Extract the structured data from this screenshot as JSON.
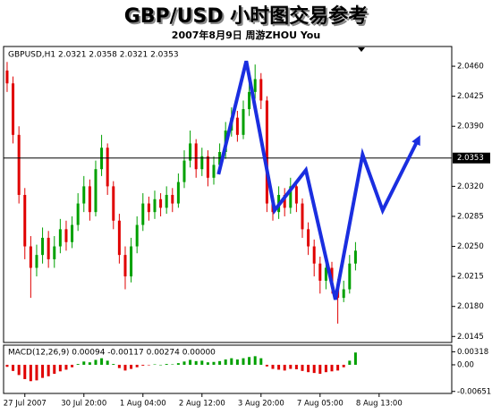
{
  "chart_data": {
    "type": "candlestick",
    "title": "GBP/USD 小时图交易参考",
    "subtitle": "2007年8月9日    周游ZHOU You",
    "info_text": "GBPUSD,H1  2.0321 2.0358 2.0321 2.0353",
    "xlim": [
      -0.6,
      75.3
    ],
    "ylim": [
      2.0138,
      2.0483
    ],
    "yticks": [
      {
        "value": 2.046,
        "label": "2.0460"
      },
      2.0425,
      {
        "value": 2.039,
        "label": "2.0390"
      },
      {
        "value": 2.032,
        "label": "2.0320"
      },
      2.0285,
      {
        "value": 2.025,
        "label": "2.0250"
      },
      2.0215,
      {
        "value": 2.018,
        "label": "2.0180"
      },
      2.0145
    ],
    "xticks": [
      {
        "value": 3,
        "label": "27 Jul 2007"
      },
      {
        "value": 13,
        "label": "30 Jul 20:00"
      },
      {
        "value": 23,
        "label": "1 Aug 04:00"
      },
      {
        "value": 33,
        "label": "2 Aug 12:00"
      },
      {
        "value": 43,
        "label": "3 Aug 20:00"
      },
      {
        "value": 53,
        "label": "7 Aug 05:00"
      },
      {
        "value": 63,
        "label": "8 Aug 13:00"
      }
    ],
    "up_color": "#00a000",
    "down_color": "#e00000",
    "current_price": 2.0353,
    "open": [
      2.0455,
      2.044,
      2.038,
      2.031,
      2.025,
      2.0225,
      2.024,
      2.026,
      2.0235,
      2.025,
      2.027,
      2.0255,
      2.0275,
      2.03,
      2.032,
      2.029,
      2.034,
      2.0365,
      2.032,
      2.028,
      2.024,
      2.0215,
      2.025,
      2.0275,
      2.03,
      2.029,
      2.0305,
      2.0295,
      2.031,
      2.03,
      2.0325,
      2.035,
      2.037,
      2.034,
      2.0355,
      2.033,
      2.0345,
      2.036,
      2.0385,
      2.04,
      2.038,
      2.041,
      2.043,
      2.0445,
      2.042,
      2.03,
      2.029,
      2.031,
      2.0295,
      2.032,
      2.03,
      2.027,
      2.025,
      2.023,
      2.021,
      2.0225,
      2.0205,
      2.019,
      2.02,
      2.023
    ],
    "high": [
      2.0465,
      2.0448,
      2.039,
      2.0318,
      2.0262,
      2.0252,
      2.0272,
      2.0268,
      2.0262,
      2.0282,
      2.028,
      2.0285,
      2.0312,
      2.0332,
      2.0328,
      2.035,
      2.038,
      2.037,
      2.0326,
      2.0288,
      2.025,
      2.026,
      2.0285,
      2.0312,
      2.0308,
      2.0315,
      2.0312,
      2.032,
      2.0318,
      2.0335,
      2.0362,
      2.0385,
      2.0375,
      2.0365,
      2.0362,
      2.0355,
      2.037,
      2.0395,
      2.0412,
      2.0408,
      2.042,
      2.0442,
      2.0462,
      2.0452,
      2.0425,
      2.031,
      2.032,
      2.0318,
      2.033,
      2.0326,
      2.0306,
      2.0278,
      2.0258,
      2.0238,
      2.0235,
      2.0232,
      2.0212,
      2.021,
      2.024,
      2.0255
    ],
    "low": [
      2.043,
      2.037,
      2.03,
      2.0235,
      2.019,
      2.0215,
      2.023,
      2.0225,
      2.0225,
      2.0242,
      2.0245,
      2.0248,
      2.0268,
      2.029,
      2.028,
      2.0285,
      2.0332,
      2.031,
      2.027,
      2.023,
      2.02,
      2.0208,
      2.0242,
      2.0268,
      2.028,
      2.0282,
      2.0285,
      2.0288,
      2.029,
      2.0295,
      2.0318,
      2.0342,
      2.033,
      2.0332,
      2.032,
      2.0322,
      2.0338,
      2.0352,
      2.0378,
      2.0372,
      2.0375,
      2.0402,
      2.0422,
      2.041,
      2.029,
      2.028,
      2.0282,
      2.0285,
      2.0288,
      2.029,
      2.026,
      2.024,
      2.0215,
      2.0195,
      2.02,
      2.0195,
      2.016,
      2.0185,
      2.0195,
      2.0222
    ],
    "close": [
      2.044,
      2.038,
      2.031,
      2.025,
      2.0225,
      2.024,
      2.026,
      2.0235,
      2.025,
      2.027,
      2.0255,
      2.0275,
      2.03,
      2.032,
      2.029,
      2.034,
      2.0365,
      2.032,
      2.028,
      2.024,
      2.0215,
      2.025,
      2.0275,
      2.03,
      2.029,
      2.0305,
      2.0295,
      2.031,
      2.03,
      2.0325,
      2.035,
      2.037,
      2.034,
      2.0355,
      2.033,
      2.0345,
      2.036,
      2.0385,
      2.04,
      2.038,
      2.041,
      2.043,
      2.0445,
      2.042,
      2.03,
      2.029,
      2.031,
      2.0295,
      2.032,
      2.03,
      2.027,
      2.025,
      2.023,
      2.021,
      2.0225,
      2.0205,
      2.019,
      2.02,
      2.023,
      2.0245
    ],
    "forecast": {
      "color": "#1a2ee0",
      "x": [
        35.8,
        40.5,
        45.3,
        50.6,
        55.6,
        60.2,
        63.6,
        69.7
      ],
      "values": [
        2.0334,
        2.0466,
        2.0292,
        2.0339,
        2.0188,
        2.0357,
        2.0292,
        2.0376
      ]
    },
    "macd": {
      "label": "MACD(12,26,9) 0.00094 -0.00117 0.00274 0.00000",
      "ylim": [
        -0.007,
        0.0048
      ],
      "yticks": [
        0.00318,
        {
          "value": 0,
          "label": "0.00"
        },
        -0.00651
      ],
      "values": [
        -0.0005,
        -0.0015,
        -0.0025,
        -0.0035,
        -0.004,
        -0.0038,
        -0.0032,
        -0.0028,
        -0.0022,
        -0.0016,
        -0.0012,
        -0.0006,
        0.0002,
        0.0008,
        0.0006,
        0.0012,
        0.0016,
        0.001,
        0.0002,
        -0.0008,
        -0.0014,
        -0.001,
        -0.0006,
        -0.0002,
        -0.0001,
        0.0001,
        0,
        0.0002,
        0.0001,
        0.0004,
        0.0008,
        0.0012,
        0.0009,
        0.001,
        0.0006,
        0.0007,
        0.0009,
        0.0013,
        0.0016,
        0.0013,
        0.0016,
        0.0019,
        0.0021,
        0.0016,
        -0.0004,
        -0.001,
        -0.0012,
        -0.0014,
        -0.001,
        -0.0011,
        -0.0015,
        -0.0018,
        -0.002,
        -0.0022,
        -0.0018,
        -0.0016,
        -0.0014,
        -0.0006,
        0.001,
        0.003
      ]
    }
  }
}
